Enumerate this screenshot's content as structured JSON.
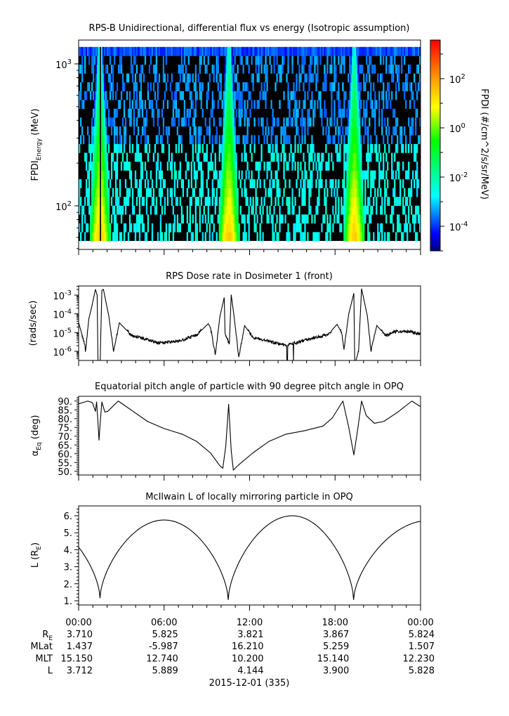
{
  "chart_data": [
    {
      "type": "heatmap",
      "title": "RPS-B  Unidirectional, differential flux vs energy (Isotropic assumption)",
      "ylabel": {
        "main": "FPDI",
        "sub": "Energy",
        "tail": " (MeV)"
      },
      "yscale": "log",
      "ylim": [
        49.3,
        1472
      ],
      "xlim_hours": [
        0,
        24
      ],
      "energy_range_mev": [
        56.6,
        1315
      ],
      "n_energy_channels": 22,
      "yticks": [
        {
          "value": 1000,
          "base": "10",
          "exp": "3"
        },
        {
          "value": 100,
          "base": "10",
          "exp": "2"
        }
      ],
      "radiation_belt_passes_hours": [
        1.5,
        10.55,
        19.35
      ],
      "colorbar": {
        "label": "FPDI (#/cm^2/s/sr/MeV)",
        "scale": "log",
        "range_log10": [
          -5.0,
          3.57
        ],
        "ticks": [
          {
            "log10": 2,
            "base": "10",
            "exp": "2"
          },
          {
            "log10": 0,
            "base": "10",
            "exp": "0"
          },
          {
            "log10": -2,
            "base": "10",
            "exp": "-2"
          },
          {
            "log10": -4,
            "base": "10",
            "exp": "-4"
          }
        ],
        "colormap": [
          "#000080",
          "#0000ff",
          "#00ffff",
          "#00ff00",
          "#ffff00",
          "#ff9900",
          "#ff0000"
        ]
      }
    },
    {
      "type": "line",
      "title": "RPS  Dose rate in Dosimeter 1 (front)",
      "ylabel": {
        "main": "(rads/sec)",
        "sub": "",
        "tail": ""
      },
      "yscale": "log",
      "ylim_log10": [
        -6.49,
        -2.51
      ],
      "yticks": [
        {
          "log10": -3,
          "base": "10",
          "exp": "-3"
        },
        {
          "log10": -4,
          "base": "10",
          "exp": "-4"
        },
        {
          "log10": -5,
          "base": "10",
          "exp": "-5"
        },
        {
          "log10": -6,
          "base": "10",
          "exp": "-6"
        }
      ],
      "series_log10": [
        [
          0,
          -4.475
        ],
        [
          0.43,
          -5.625
        ],
        [
          0.48,
          -6.0
        ],
        [
          0.72,
          -4.25
        ],
        [
          0.92,
          -3.625
        ],
        [
          1.18,
          -2.69
        ],
        [
          1.3,
          -3.0
        ],
        [
          1.36,
          -6.6
        ],
        [
          1.51,
          -6.6
        ],
        [
          1.63,
          -2.75
        ],
        [
          1.74,
          -2.69
        ],
        [
          2.12,
          -4.125
        ],
        [
          2.45,
          -6.0
        ],
        [
          2.86,
          -4.475
        ],
        [
          3.68,
          -5.125
        ],
        [
          5.65,
          -5.56
        ],
        [
          7.13,
          -5.44
        ],
        [
          8.28,
          -5.125
        ],
        [
          9.1,
          -4.525
        ],
        [
          9.26,
          -4.75
        ],
        [
          9.59,
          -6.19
        ],
        [
          9.92,
          -4.125
        ],
        [
          10.22,
          -3.125
        ],
        [
          10.28,
          -5.06
        ],
        [
          10.58,
          -5.625
        ],
        [
          10.71,
          -2.975
        ],
        [
          10.91,
          -4.125
        ],
        [
          11.24,
          -6.31
        ],
        [
          11.65,
          -4.625
        ],
        [
          12.22,
          -5.25
        ],
        [
          14.19,
          -5.625
        ],
        [
          14.6,
          -5.69
        ],
        [
          14.62,
          -6.6
        ],
        [
          14.66,
          -6.6
        ],
        [
          14.68,
          -5.69
        ],
        [
          15.06,
          -5.6
        ],
        [
          15.08,
          -6.6
        ],
        [
          15.1,
          -5.58
        ],
        [
          15.18,
          -5.56
        ],
        [
          16.66,
          -5.25
        ],
        [
          17.48,
          -5.125
        ],
        [
          18.14,
          -4.56
        ],
        [
          18.46,
          -5.0
        ],
        [
          18.63,
          -5.875
        ],
        [
          18.96,
          -4.0
        ],
        [
          19.32,
          -2.9
        ],
        [
          19.38,
          -6.6
        ],
        [
          19.42,
          -6.6
        ],
        [
          19.65,
          -6.0
        ],
        [
          19.86,
          -2.65
        ],
        [
          20.27,
          -4.125
        ],
        [
          20.52,
          -6.0
        ],
        [
          20.93,
          -4.625
        ],
        [
          21.59,
          -5.19
        ],
        [
          22.08,
          -4.94
        ],
        [
          23.23,
          -4.94
        ],
        [
          24,
          -5.1
        ]
      ]
    },
    {
      "type": "line",
      "title": "Equatorial pitch angle of particle with 90 degree pitch angle in OPQ",
      "ylabel": {
        "main": "α",
        "sub": "Eq",
        "tail": " (deg)"
      },
      "ylim": [
        47.9,
        92.7
      ],
      "yticks": [
        50,
        55,
        60,
        65,
        70,
        75,
        80,
        85,
        90
      ],
      "series": [
        [
          0,
          88.4
        ],
        [
          0.64,
          90
        ],
        [
          0.97,
          89.07
        ],
        [
          1.18,
          84.13
        ],
        [
          1.26,
          89.5
        ],
        [
          1.35,
          79.07
        ],
        [
          1.43,
          67.73
        ],
        [
          1.54,
          80.4
        ],
        [
          1.63,
          89.47
        ],
        [
          1.84,
          83.73
        ],
        [
          2.04,
          84.13
        ],
        [
          2.78,
          90
        ],
        [
          4.01,
          83.07
        ],
        [
          4.83,
          78.4
        ],
        [
          5.98,
          74.4
        ],
        [
          7.29,
          71.07
        ],
        [
          8.28,
          67.07
        ],
        [
          9.26,
          60.4
        ],
        [
          9.92,
          53.07
        ],
        [
          10.12,
          51.73
        ],
        [
          10.33,
          64.4
        ],
        [
          10.53,
          88.2
        ],
        [
          10.71,
          61.73
        ],
        [
          10.86,
          50.67
        ],
        [
          11.24,
          53.73
        ],
        [
          12.22,
          60.4
        ],
        [
          13.37,
          67.07
        ],
        [
          14.52,
          71.07
        ],
        [
          15.84,
          73.07
        ],
        [
          17.15,
          75.73
        ],
        [
          17.81,
          80.4
        ],
        [
          18.55,
          90
        ],
        [
          18.96,
          75.07
        ],
        [
          19.32,
          59.33
        ],
        [
          19.61,
          75.07
        ],
        [
          19.86,
          90
        ],
        [
          20.19,
          81.73
        ],
        [
          20.76,
          77.33
        ],
        [
          21.42,
          78.4
        ],
        [
          22.41,
          83.73
        ],
        [
          23.39,
          90
        ],
        [
          24,
          86.8
        ]
      ]
    },
    {
      "type": "line",
      "title": "McIlwain L of locally mirroring particle in OPQ",
      "ylabel": {
        "main": "L (R",
        "sub": "E",
        "tail": ")"
      },
      "ylim": [
        0.75,
        6.58
      ],
      "yticks": [
        1,
        2,
        3,
        4,
        5,
        6
      ],
      "key_points": [
        [
          -3.0,
          5.7
        ],
        [
          1.5,
          1.15
        ],
        [
          6.0,
          5.75
        ],
        [
          10.5,
          1.05
        ],
        [
          15.0,
          6.0
        ],
        [
          19.3,
          1.05
        ],
        [
          24.6,
          5.72
        ]
      ]
    }
  ],
  "x_axis": {
    "time_labels": [
      "00:00",
      "06:00",
      "12:00",
      "18:00",
      "00:00"
    ],
    "ephemeris": [
      {
        "label": "R",
        "sub": "E",
        "values": [
          "3.710",
          "5.825",
          "3.821",
          "3.867",
          "5.824"
        ]
      },
      {
        "label": "MLat",
        "sub": "",
        "values": [
          "1.437",
          "-5.987",
          "16.210",
          "5.259",
          "1.507"
        ]
      },
      {
        "label": "MLT",
        "sub": "",
        "values": [
          "15.150",
          "12.740",
          "10.200",
          "15.140",
          "12.230"
        ]
      },
      {
        "label": "L",
        "sub": "",
        "values": [
          "3.712",
          "5.889",
          "4.144",
          "3.900",
          "5.828"
        ]
      }
    ],
    "date_label": "2015-12-01 (335)"
  }
}
